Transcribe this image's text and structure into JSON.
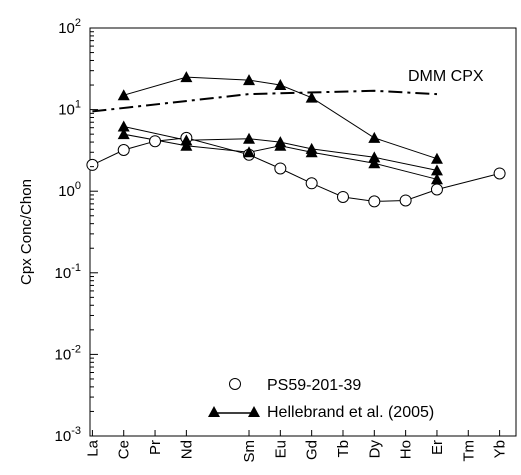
{
  "chart_data": {
    "type": "line",
    "title": "",
    "xlabel": "",
    "ylabel": "Cpx Conc/Chon",
    "y_scale": "log",
    "ylim": [
      0.001,
      100
    ],
    "y_ticks": [
      {
        "value": 0.001,
        "base": "10",
        "exp": "-3"
      },
      {
        "value": 0.01,
        "base": "10",
        "exp": "-2"
      },
      {
        "value": 0.1,
        "base": "10",
        "exp": "-1"
      },
      {
        "value": 1,
        "base": "10",
        "exp": "0"
      },
      {
        "value": 10,
        "base": "10",
        "exp": "1"
      },
      {
        "value": 100,
        "base": "10",
        "exp": "2"
      }
    ],
    "categories": [
      "La",
      "Ce",
      "Pr",
      "Nd",
      "Sm",
      "Eu",
      "Gd",
      "Tb",
      "Dy",
      "Ho",
      "Er",
      "Tm",
      "Yb"
    ],
    "category_positions": [
      0,
      1,
      2,
      3,
      5,
      6,
      7,
      8,
      9,
      10,
      11,
      12,
      13
    ],
    "grid": false,
    "legend": {
      "position": "bottom-right",
      "entries": [
        {
          "label": "PS59-201-39",
          "marker": "open-circle",
          "line": false
        },
        {
          "label": "Hellebrand et al. (2005)",
          "marker": "filled-triangle",
          "line": true
        }
      ]
    },
    "series": [
      {
        "marker": "open-circle",
        "x": [
          0,
          1,
          2,
          3,
          5,
          6,
          7,
          8,
          9,
          10,
          11,
          13
        ],
        "values": [
          2.1,
          3.2,
          4.1,
          4.5,
          2.8,
          1.9,
          1.25,
          0.85,
          0.75,
          0.77,
          1.05,
          1.65
        ]
      },
      {
        "legend_ref": 1,
        "marker": "filled-triangle",
        "x": [
          1,
          3,
          5,
          6,
          7,
          9,
          11
        ],
        "values": [
          15,
          25,
          23,
          20,
          14,
          4.5,
          2.5
        ]
      },
      {
        "legend_ref": 1,
        "marker": "filled-triangle",
        "x": [
          1,
          3,
          5,
          6,
          7,
          9,
          11
        ],
        "values": [
          6.2,
          4.2,
          4.4,
          4.0,
          3.3,
          2.6,
          1.8
        ]
      },
      {
        "legend_ref": 1,
        "marker": "filled-triangle",
        "x": [
          1,
          3,
          5,
          6,
          7,
          9,
          11
        ],
        "values": [
          5.0,
          3.6,
          3.0,
          3.6,
          3.0,
          2.2,
          1.4
        ]
      },
      {
        "name": "DMM CPX",
        "marker": "none",
        "line_style": "dash-dot",
        "x": [
          0,
          5,
          9,
          11
        ],
        "values": [
          9.5,
          15.5,
          17,
          15.5
        ]
      }
    ]
  }
}
